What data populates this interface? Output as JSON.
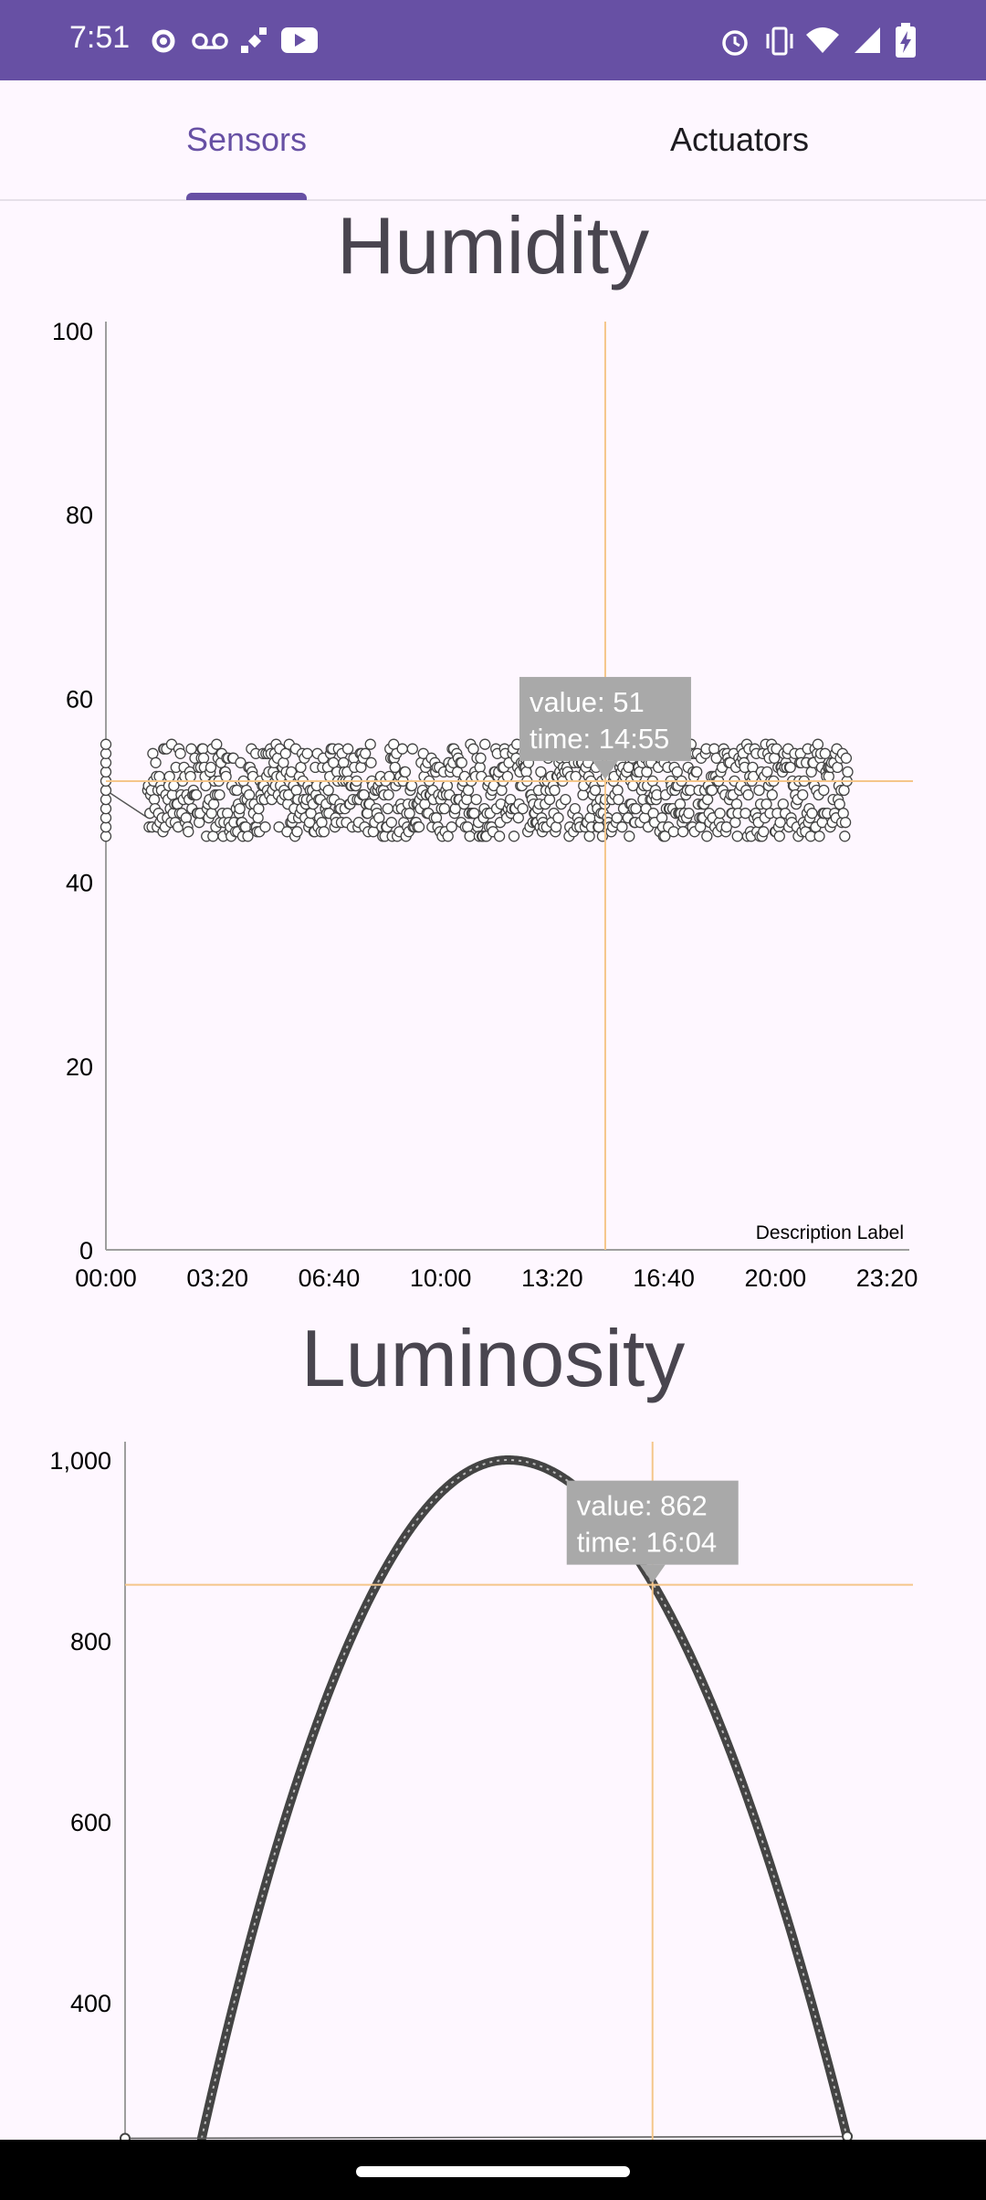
{
  "status_bar": {
    "time": "7:51",
    "left_icons": [
      "gear-icon",
      "voicemail-icon",
      "satellite-icon",
      "youtube-icon"
    ],
    "right_icons": [
      "alarm-icon",
      "vibrate-icon",
      "wifi-icon",
      "signal-icon",
      "battery-charging-icon"
    ]
  },
  "tabs": [
    {
      "label": "Sensors",
      "selected": true
    },
    {
      "label": "Actuators",
      "selected": false
    }
  ],
  "colors": {
    "primary": "#6750A4",
    "crosshair": "#F5C68A",
    "marker": "#444444",
    "tooltip": "#A9A9A9"
  },
  "chart_data": [
    {
      "type": "scatter",
      "title": "Humidity",
      "ylim": [
        0,
        100
      ],
      "yticks": [
        "0",
        "20",
        "40",
        "60",
        "80",
        "100"
      ],
      "xticks": [
        "00:00",
        "03:20",
        "06:40",
        "10:00",
        "13:20",
        "16:40",
        "20:00",
        "23:20"
      ],
      "x_range_minutes": [
        0,
        1440
      ],
      "description": "Description Label",
      "series_band": {
        "x_start": "01:15",
        "x_end": "22:10",
        "y_min": 45,
        "y_max": 55
      },
      "highlight": {
        "value": 51,
        "time": "14:55",
        "tooltip_value": "value: 51",
        "tooltip_time": "time: 14:55"
      }
    },
    {
      "type": "line",
      "title": "Luminosity",
      "ylim": [
        200,
        1000
      ],
      "yticks": [
        "400",
        "600",
        "800",
        "1,000"
      ],
      "x_range_minutes": [
        0,
        1440
      ],
      "curve": {
        "x_start": "02:20",
        "x_peak": "11:40",
        "x_end": "22:00",
        "peak": 1000,
        "start_value": 250
      },
      "highlight": {
        "value": 862,
        "time": "16:04",
        "tooltip_value": "value: 862",
        "tooltip_time": "time: 16:04"
      }
    }
  ]
}
